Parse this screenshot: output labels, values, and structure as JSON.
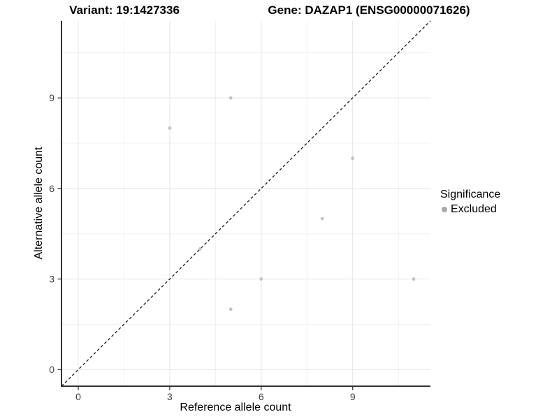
{
  "titles": {
    "variant": "Variant: 19:1427336",
    "gene": "Gene: DAZAP1 (ENSG00000071626)"
  },
  "colors": {
    "background": "#ffffff",
    "point": "#c3c3c3",
    "legend_point": "#a9a9a9",
    "grid_major": "#e4e4e4",
    "grid_minor": "#f0f0f0",
    "axis_line": "#333333",
    "tick_label": "#404040",
    "dashed_line": "#1a1a1a",
    "title_text": "#000000"
  },
  "chart_data": {
    "type": "scatter",
    "title": "Variant: 19:1427336 | Gene: DAZAP1 (ENSG00000071626)",
    "xlabel": "Reference allele count",
    "ylabel": "Alternative allele count",
    "xlim": [
      -0.55,
      11.55
    ],
    "ylim": [
      -0.55,
      11.55
    ],
    "x_ticks": [
      0,
      3,
      6,
      9
    ],
    "y_ticks": [
      0,
      3,
      6,
      9
    ],
    "minor_gridlines": [
      1.5,
      4.5,
      7.5,
      10.5
    ],
    "grid": true,
    "reference_line": {
      "type": "identity y=x",
      "style": "dashed",
      "color": "#1a1a1a"
    },
    "series": [
      {
        "name": "Excluded",
        "color": "#c3c3c3",
        "points": [
          [
            3,
            8
          ],
          [
            4,
            4
          ],
          [
            5,
            2
          ],
          [
            5,
            9
          ],
          [
            6,
            3
          ],
          [
            8,
            5
          ],
          [
            9,
            7
          ],
          [
            11,
            3
          ]
        ]
      }
    ],
    "legend": {
      "title": "Significance",
      "position": "right",
      "items": [
        {
          "label": "Excluded",
          "color": "#a9a9a9"
        }
      ]
    }
  }
}
